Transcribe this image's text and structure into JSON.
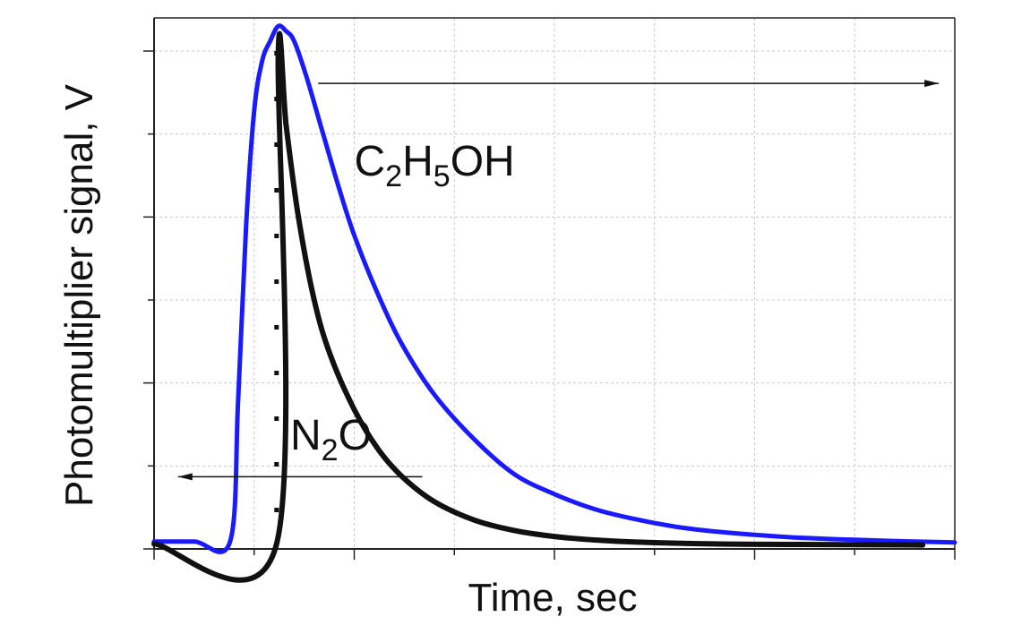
{
  "chart_data": {
    "type": "line",
    "title": "",
    "xlabel": "Time, sec",
    "ylabel": "Photomultiplier signal, V",
    "xlim": [
      0,
      100
    ],
    "ylim": [
      0,
      100
    ],
    "x_tick_labels": [],
    "y_tick_labels": [],
    "grid": true,
    "legend": "none",
    "series": [
      {
        "color": "#1a1aff",
        "x": [
          0,
          5,
          9.5,
          10.5,
          11.5,
          12.5,
          13.5,
          14.5,
          15.5,
          16.5,
          17.5,
          19,
          21,
          23,
          25,
          28,
          31,
          35,
          40,
          45,
          50,
          55,
          60,
          65,
          70,
          80,
          90,
          100
        ],
        "y": [
          1.5,
          1.5,
          1.5,
          30,
          65,
          88,
          98,
          102,
          105,
          104,
          102,
          95,
          84,
          73,
          63,
          51,
          41,
          31,
          22,
          15,
          11,
          8,
          6,
          4.5,
          3.5,
          2.3,
          1.7,
          1.3
        ]
      },
      {
        "color": "#111111",
        "x": [
          0,
          15.3,
          15.5,
          16.5,
          18,
          20,
          22,
          25,
          28,
          31,
          35,
          40,
          45,
          50,
          55,
          60,
          70,
          80,
          96
        ],
        "y": [
          1,
          1,
          99,
          85,
          67,
          50,
          39,
          28,
          20,
          14.5,
          9.5,
          5.8,
          3.7,
          2.5,
          1.8,
          1.4,
          1,
          0.9,
          0.8
        ]
      }
    ],
    "marker_line": {
      "x": 15.3
    },
    "annotations": [
      {
        "main": "C",
        "sub": "2",
        "main2": "H",
        "sub2": "5",
        "tail": "OH",
        "x": 25,
        "y": 75
      },
      {
        "main": "N",
        "sub": "2",
        "tail": "O",
        "x": 17,
        "y": 20
      }
    ],
    "arrows": [
      {
        "direction": "right",
        "x1": 20.5,
        "x2": 98,
        "y": 93.5
      },
      {
        "direction": "left",
        "x1": 33.5,
        "x2": 3,
        "y": 14.5
      }
    ]
  }
}
